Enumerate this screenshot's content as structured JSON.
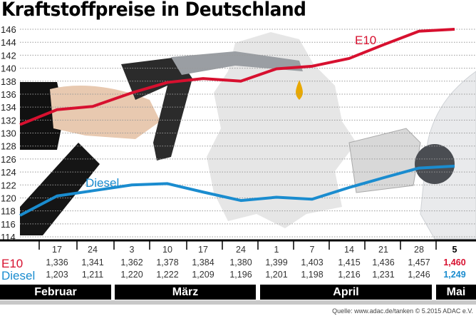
{
  "chart_data": {
    "type": "line",
    "title": "Kraftstoffpreise in Deutschland",
    "ylim": [
      114,
      146
    ],
    "yticks": [
      114,
      116,
      118,
      120,
      122,
      124,
      126,
      128,
      130,
      132,
      134,
      136,
      138,
      140,
      142,
      144,
      146
    ],
    "grid": true,
    "categories": [
      "17",
      "24",
      "3",
      "10",
      "17",
      "24",
      "1",
      "7",
      "14",
      "21",
      "28",
      "5"
    ],
    "months": [
      {
        "label": "Februar"
      },
      {
        "label": "März"
      },
      {
        "label": "April"
      },
      {
        "label": "Mai"
      }
    ],
    "lead_in_values": {
      "E10": 131.3,
      "Diesel": 117.3
    },
    "series": [
      {
        "name": "E10",
        "color": "#d7102f",
        "values": [
          133.6,
          134.1,
          136.2,
          137.8,
          138.4,
          138.0,
          139.9,
          140.3,
          141.5,
          143.6,
          145.7,
          146.0
        ],
        "labels": [
          "1,336",
          "1,341",
          "1,362",
          "1,378",
          "1,384",
          "1,380",
          "1,399",
          "1,403",
          "1,415",
          "1,436",
          "1,457",
          "1,460"
        ]
      },
      {
        "name": "Diesel",
        "color": "#1a8ccf",
        "values": [
          120.3,
          121.1,
          122.0,
          122.2,
          120.9,
          119.6,
          120.1,
          119.8,
          121.6,
          123.1,
          124.6,
          124.9
        ],
        "labels": [
          "1,203",
          "1,211",
          "1,220",
          "1,222",
          "1,209",
          "1,196",
          "1,201",
          "1,198",
          "1,216",
          "1,231",
          "1,246",
          "1,249"
        ]
      }
    ]
  },
  "source": "Quelle: www.adac.de/tanken   © 5.2015  ADAC e.V."
}
